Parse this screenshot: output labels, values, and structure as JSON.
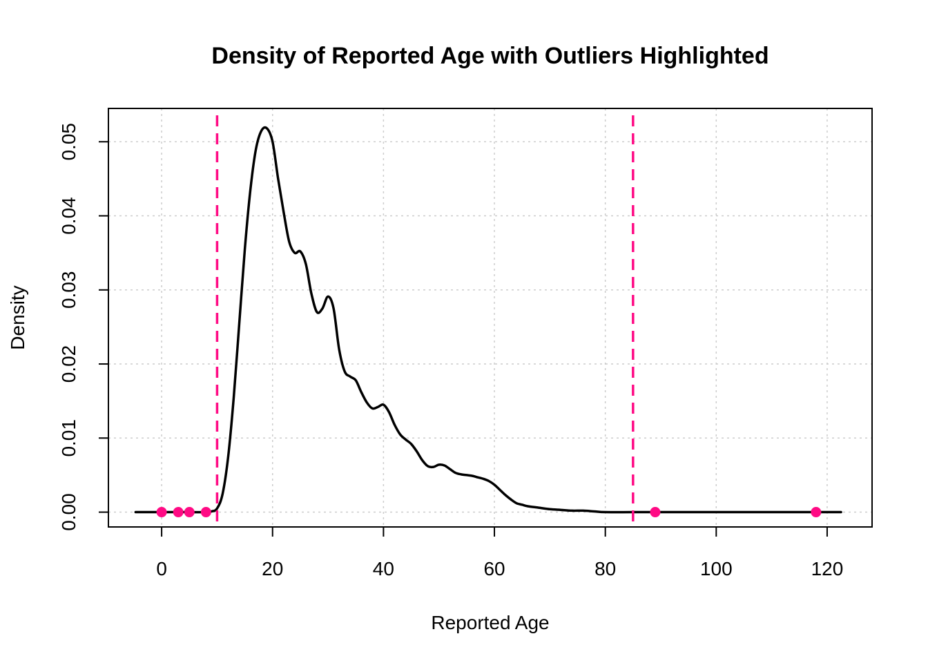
{
  "chart_data": {
    "type": "line",
    "title": "Density of Reported Age with Outliers Highlighted",
    "xlabel": "Reported Age",
    "ylabel": "Density",
    "xlim": [
      -9.6,
      128.1
    ],
    "ylim": [
      -0.002,
      0.0545
    ],
    "xticks": [
      0,
      20,
      40,
      60,
      80,
      100,
      120
    ],
    "xtick_labels": [
      "0",
      "20",
      "40",
      "60",
      "80",
      "100",
      "120"
    ],
    "yticks": [
      0,
      0.01,
      0.02,
      0.03,
      0.04,
      0.05
    ],
    "ytick_labels": [
      "0.00",
      "0.01",
      "0.02",
      "0.03",
      "0.04",
      "0.05"
    ],
    "grid": true,
    "series": [
      {
        "x": [
          -4.7,
          0,
          3,
          5,
          8,
          9,
          10,
          11,
          12,
          13,
          14,
          15,
          16,
          17,
          18,
          19,
          20,
          21,
          22,
          23,
          24,
          25,
          26,
          27,
          28,
          29,
          30,
          31,
          32,
          33,
          34,
          35,
          36,
          37,
          38,
          39,
          40,
          41,
          42,
          43,
          44,
          45,
          46,
          47,
          48,
          49,
          50,
          51,
          52,
          53,
          54,
          55,
          56,
          57,
          58,
          59,
          60,
          61,
          62,
          63,
          64,
          65,
          66,
          68,
          70,
          72,
          74,
          76,
          78,
          80,
          85,
          90,
          100,
          110,
          118,
          122.5
        ],
        "y": [
          0,
          0,
          0,
          0,
          0,
          0.0001,
          0.0005,
          0.0025,
          0.0075,
          0.0155,
          0.0255,
          0.0355,
          0.0435,
          0.049,
          0.0515,
          0.0518,
          0.05,
          0.045,
          0.0405,
          0.0365,
          0.035,
          0.0352,
          0.0335,
          0.0295,
          0.027,
          0.0275,
          0.0291,
          0.0275,
          0.022,
          0.019,
          0.0183,
          0.0178,
          0.0162,
          0.0148,
          0.014,
          0.0142,
          0.0145,
          0.0135,
          0.0118,
          0.0105,
          0.0098,
          0.0092,
          0.0082,
          0.007,
          0.0062,
          0.0061,
          0.0064,
          0.0063,
          0.0058,
          0.0053,
          0.0051,
          0.005,
          0.0049,
          0.0047,
          0.0045,
          0.0042,
          0.0037,
          0.003,
          0.0023,
          0.0017,
          0.0012,
          0.001,
          0.0008,
          0.0006,
          0.0004,
          0.0003,
          0.0002,
          0.0002,
          0.0001,
          0,
          0,
          0,
          0,
          0,
          0,
          0
        ],
        "color": "#000000"
      }
    ],
    "outliers": {
      "x": [
        0,
        3,
        5,
        8,
        89,
        118
      ],
      "y": [
        0,
        0,
        0,
        0,
        0,
        0
      ],
      "color": "#ff0a84"
    },
    "thresholds": {
      "x": [
        10,
        85
      ],
      "color": "#ff0a84",
      "style": "dashed"
    }
  }
}
